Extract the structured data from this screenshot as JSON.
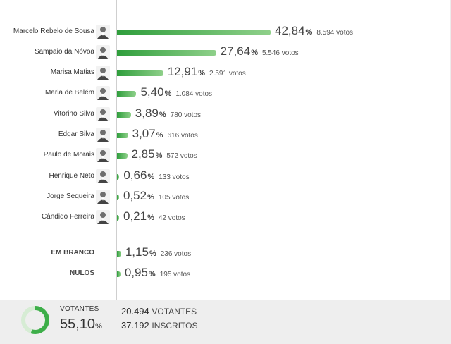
{
  "chart_data": {
    "type": "bar",
    "orientation": "horizontal",
    "categories": [
      "Marcelo Rebelo de Sousa",
      "Sampaio da Nóvoa",
      "Marisa Matias",
      "Maria de Belém",
      "Vitorino Silva",
      "Edgar Silva",
      "Paulo de Morais",
      "Henrique Neto",
      "Jorge Sequeira",
      "Cândido Ferreira",
      "EM BRANCO",
      "NULOS"
    ],
    "values": [
      42.84,
      27.64,
      12.91,
      5.4,
      3.89,
      3.07,
      2.85,
      0.66,
      0.52,
      0.21,
      1.15,
      0.95
    ],
    "value_labels": [
      "42,84",
      "27,64",
      "12,91",
      "5,40",
      "3,89",
      "3,07",
      "2,85",
      "0,66",
      "0,52",
      "0,21",
      "1,15",
      "0,95"
    ],
    "votes_labels": [
      "8.594 votos",
      "5.546 votos",
      "2.591 votos",
      "1.084 votos",
      "780 votos",
      "616 votos",
      "572 votos",
      "133 votos",
      "105 votos",
      "42 votos",
      "236 votos",
      "195 votos"
    ],
    "percent_sign": "%",
    "xlim": [
      0,
      100
    ],
    "grid": false,
    "bar_color": "#3dae49"
  },
  "summary": {
    "turnout_label": "VOTANTES",
    "turnout_value": "55,10",
    "turnout_fraction": 0.551,
    "percent_sign": "%",
    "voters_number": "20.494",
    "voters_label": "VOTANTES",
    "registered_number": "37.192",
    "registered_label": "INSCRITOS"
  },
  "colors": {
    "accent": "#3dae49",
    "track": "#d6ecd4"
  }
}
